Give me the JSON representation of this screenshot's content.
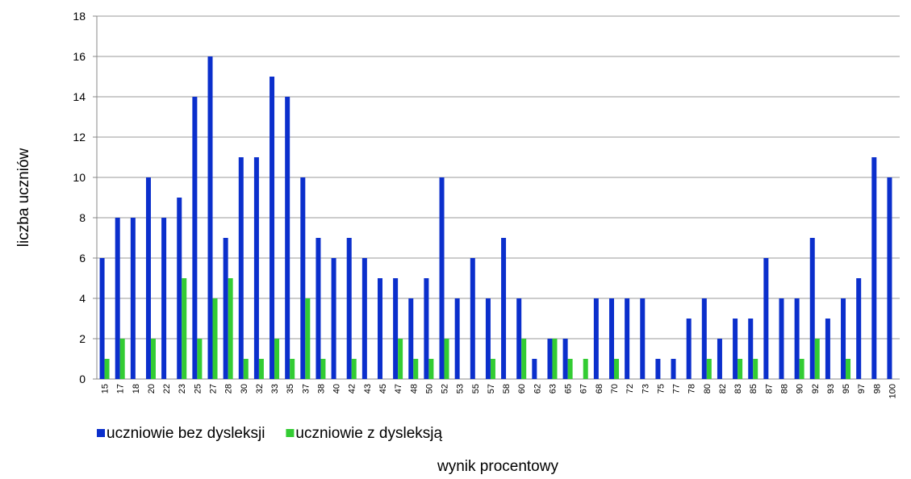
{
  "chart_data": {
    "type": "bar",
    "categories": [
      "15",
      "17",
      "18",
      "20",
      "22",
      "23",
      "25",
      "27",
      "28",
      "30",
      "32",
      "33",
      "35",
      "37",
      "38",
      "40",
      "42",
      "43",
      "45",
      "47",
      "48",
      "50",
      "52",
      "53",
      "55",
      "57",
      "58",
      "60",
      "62",
      "63",
      "65",
      "67",
      "68",
      "70",
      "72",
      "73",
      "75",
      "77",
      "78",
      "80",
      "82",
      "83",
      "85",
      "87",
      "88",
      "90",
      "92",
      "93",
      "95",
      "97",
      "98",
      "100"
    ],
    "series": [
      {
        "name": "uczniowie bez dysleksji",
        "color": "#0b2fcc",
        "values": [
          6,
          8,
          8,
          10,
          8,
          9,
          14,
          16,
          7,
          11,
          11,
          15,
          14,
          10,
          7,
          6,
          7,
          6,
          5,
          5,
          4,
          5,
          10,
          4,
          6,
          4,
          7,
          4,
          1,
          2,
          2,
          0,
          4,
          4,
          4,
          4,
          1,
          1,
          3,
          4,
          2,
          3,
          3,
          6,
          4,
          4,
          7,
          3,
          4,
          5,
          11,
          10
        ]
      },
      {
        "name": "uczniowie z dysleksją",
        "color": "#33cc33",
        "values": [
          1,
          2,
          0,
          2,
          0,
          5,
          2,
          4,
          5,
          1,
          1,
          2,
          1,
          4,
          1,
          0,
          1,
          0,
          0,
          2,
          1,
          1,
          2,
          0,
          0,
          1,
          0,
          2,
          0,
          2,
          1,
          1,
          0,
          1,
          0,
          0,
          0,
          0,
          0,
          1,
          0,
          1,
          1,
          0,
          0,
          1,
          2,
          0,
          1,
          0,
          0,
          0
        ]
      }
    ],
    "xlabel": "wynik procentowy",
    "ylabel": "liczba uczniów",
    "ylim": [
      0,
      18
    ],
    "yticks": [
      0,
      2,
      4,
      6,
      8,
      10,
      12,
      14,
      16,
      18
    ],
    "grid": true,
    "legend": "bottom"
  }
}
